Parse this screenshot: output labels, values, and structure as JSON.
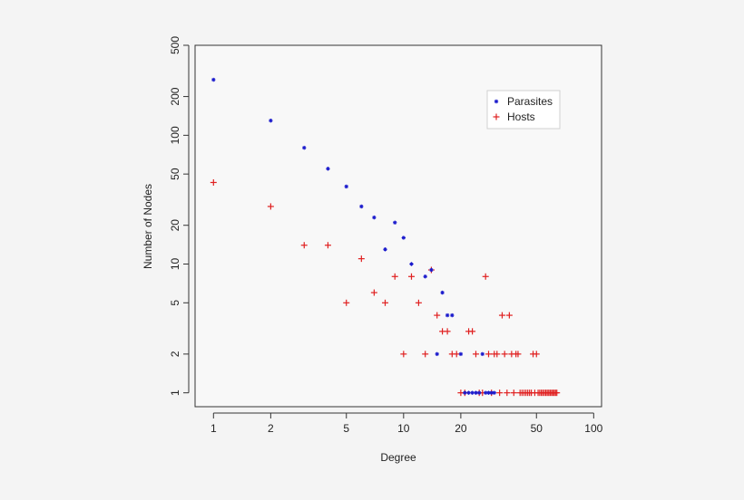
{
  "chart_data": {
    "type": "scatter",
    "title": "",
    "xlabel": "Degree",
    "ylabel": "Number of Nodes",
    "xscale": "log",
    "yscale": "log",
    "xlim": [
      0.8,
      110
    ],
    "ylim": [
      0.78,
      500
    ],
    "xticks": [
      1,
      2,
      5,
      10,
      20,
      50,
      100
    ],
    "xtick_labels": [
      "1",
      "2",
      "5",
      "10",
      "20",
      "50",
      "100"
    ],
    "yticks": [
      1,
      2,
      5,
      10,
      20,
      50,
      100,
      200,
      500
    ],
    "ytick_labels": [
      "1",
      "2",
      "5",
      "10",
      "20",
      "50",
      "100",
      "200",
      "500"
    ],
    "grid": false,
    "legend_position": "top-right",
    "series": [
      {
        "name": "Parasites",
        "marker": "star",
        "color": "#1a1acc",
        "points": [
          [
            1,
            270
          ],
          [
            2,
            130
          ],
          [
            3,
            80
          ],
          [
            4,
            55
          ],
          [
            5,
            40
          ],
          [
            6,
            28
          ],
          [
            7,
            23
          ],
          [
            8,
            13
          ],
          [
            9,
            21
          ],
          [
            10,
            16
          ],
          [
            11,
            10
          ],
          [
            13,
            8
          ],
          [
            14,
            9
          ],
          [
            16,
            6
          ],
          [
            17,
            4
          ],
          [
            18,
            4
          ],
          [
            15,
            2
          ],
          [
            20,
            2
          ],
          [
            26,
            2
          ],
          [
            21,
            1
          ],
          [
            22,
            1
          ],
          [
            23,
            1
          ],
          [
            24,
            1
          ],
          [
            25,
            1
          ],
          [
            27,
            1
          ],
          [
            28,
            1
          ],
          [
            29,
            1
          ],
          [
            30,
            1
          ]
        ]
      },
      {
        "name": "Hosts",
        "marker": "plus",
        "color": "#e02020",
        "points": [
          [
            1,
            43
          ],
          [
            2,
            28
          ],
          [
            3,
            14
          ],
          [
            4,
            14
          ],
          [
            5,
            5
          ],
          [
            6,
            11
          ],
          [
            7,
            6
          ],
          [
            8,
            5
          ],
          [
            9,
            8
          ],
          [
            10,
            2
          ],
          [
            11,
            8
          ],
          [
            12,
            5
          ],
          [
            13,
            2
          ],
          [
            14,
            9
          ],
          [
            15,
            4
          ],
          [
            16,
            3
          ],
          [
            17,
            3
          ],
          [
            18,
            2
          ],
          [
            19,
            2
          ],
          [
            22,
            3
          ],
          [
            23,
            3
          ],
          [
            24,
            2
          ],
          [
            27,
            8
          ],
          [
            28,
            2
          ],
          [
            30,
            2
          ],
          [
            31,
            2
          ],
          [
            33,
            4
          ],
          [
            34,
            2
          ],
          [
            36,
            4
          ],
          [
            37,
            2
          ],
          [
            39,
            2
          ],
          [
            40,
            2
          ],
          [
            48,
            2
          ],
          [
            50,
            2
          ],
          [
            20,
            1
          ],
          [
            21,
            1
          ],
          [
            25,
            1
          ],
          [
            26,
            1
          ],
          [
            29,
            1
          ],
          [
            32,
            1
          ],
          [
            35,
            1
          ],
          [
            38,
            1
          ],
          [
            41,
            1
          ],
          [
            42,
            1
          ],
          [
            43,
            1
          ],
          [
            44,
            1
          ],
          [
            45,
            1
          ],
          [
            46,
            1
          ],
          [
            47,
            1
          ],
          [
            49,
            1
          ],
          [
            51,
            1
          ],
          [
            52,
            1
          ],
          [
            53,
            1
          ],
          [
            54,
            1
          ],
          [
            55,
            1
          ],
          [
            56,
            1
          ],
          [
            57,
            1
          ],
          [
            58,
            1
          ],
          [
            59,
            1
          ],
          [
            60,
            1
          ],
          [
            61,
            1
          ],
          [
            62,
            1
          ],
          [
            63,
            1
          ],
          [
            64,
            1
          ]
        ]
      }
    ]
  }
}
